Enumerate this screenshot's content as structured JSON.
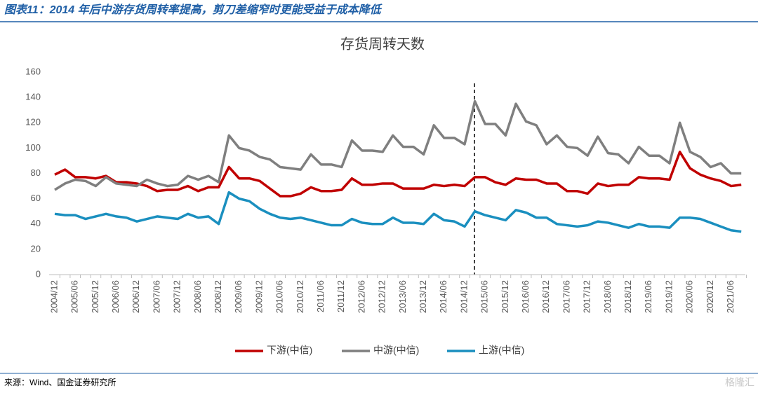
{
  "header": {
    "title": "图表11：2014 年后中游存货周转率提高，剪刀差缩窄时更能受益于成本降低"
  },
  "chart_data": {
    "type": "line",
    "title": "存货周转天数",
    "categories": [
      "2004/12",
      null,
      "2005/06",
      null,
      "2005/12",
      null,
      "2006/06",
      null,
      "2006/12",
      null,
      "2007/06",
      null,
      "2007/12",
      null,
      "2008/06",
      null,
      "2008/12",
      null,
      "2009/06",
      null,
      "2009/12",
      null,
      "2010/06",
      null,
      "2010/12",
      null,
      "2011/06",
      null,
      "2011/12",
      null,
      "2012/06",
      null,
      "2012/12",
      null,
      "2013/06",
      null,
      "2013/12",
      null,
      "2014/06",
      null,
      "2014/12",
      null,
      "2015/06",
      null,
      "2015/12",
      null,
      "2016/06",
      null,
      "2016/12",
      null,
      "2017/06",
      null,
      "2017/12",
      null,
      "2018/06",
      null,
      "2018/12",
      null,
      "2019/06",
      null,
      "2019/12",
      null,
      "2020/06",
      null,
      "2020/12",
      null,
      "2021/06",
      null
    ],
    "series": [
      {
        "name": "下游(中信)",
        "color": "#c00000",
        "values": [
          79,
          83,
          77,
          77,
          76,
          78,
          73,
          73,
          72,
          70,
          66,
          67,
          67,
          70,
          66,
          69,
          69,
          85,
          76,
          76,
          74,
          68,
          62,
          62,
          64,
          69,
          66,
          66,
          67,
          76,
          71,
          71,
          72,
          72,
          68,
          68,
          68,
          71,
          70,
          71,
          70,
          77,
          77,
          73,
          71,
          76,
          75,
          75,
          72,
          72,
          66,
          66,
          64,
          72,
          70,
          71,
          71,
          77,
          76,
          76,
          75,
          97,
          84,
          79,
          76,
          74,
          70,
          71
        ]
      },
      {
        "name": "中游(中信)",
        "color": "#7f7f7f",
        "values": [
          67,
          72,
          75,
          74,
          70,
          77,
          72,
          71,
          70,
          75,
          72,
          70,
          71,
          78,
          75,
          78,
          73,
          110,
          100,
          98,
          93,
          91,
          85,
          84,
          83,
          95,
          87,
          87,
          85,
          106,
          98,
          98,
          97,
          110,
          101,
          101,
          95,
          118,
          108,
          108,
          103,
          137,
          119,
          119,
          110,
          135,
          121,
          118,
          103,
          110,
          101,
          100,
          94,
          109,
          96,
          95,
          88,
          101,
          94,
          94,
          88,
          120,
          97,
          93,
          85,
          88,
          80,
          80
        ]
      },
      {
        "name": "上游(中信)",
        "color": "#1a8fbf",
        "values": [
          48,
          47,
          47,
          44,
          46,
          48,
          46,
          45,
          42,
          44,
          46,
          45,
          44,
          48,
          45,
          46,
          40,
          65,
          60,
          58,
          52,
          48,
          45,
          44,
          45,
          43,
          41,
          39,
          39,
          44,
          41,
          40,
          40,
          45,
          41,
          41,
          40,
          48,
          43,
          42,
          38,
          50,
          47,
          45,
          43,
          51,
          49,
          45,
          45,
          40,
          39,
          38,
          39,
          42,
          41,
          39,
          37,
          40,
          38,
          38,
          37,
          45,
          45,
          44,
          41,
          38,
          35,
          34
        ]
      }
    ],
    "ylim": [
      0,
      160
    ],
    "yticks": [
      0,
      20,
      40,
      60,
      80,
      100,
      120,
      140,
      160
    ],
    "legend": "bottom"
  },
  "footer": {
    "source": "来源：Wind、国金证券研究所",
    "watermark": "格隆汇"
  }
}
